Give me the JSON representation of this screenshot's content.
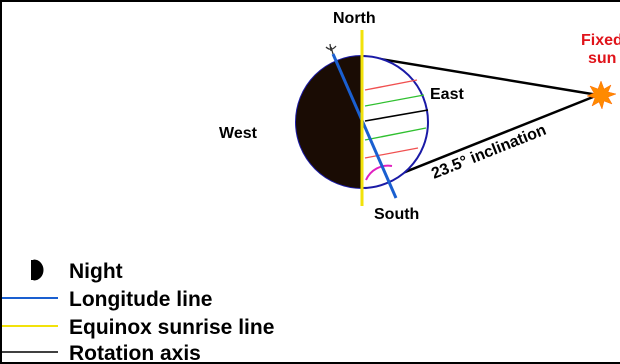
{
  "labels": {
    "north": "North",
    "south": "South",
    "east": "East",
    "west": "West",
    "sun_line1": "Fixed",
    "sun_line2": "sun",
    "inclination": "23.5° inclination"
  },
  "legend": {
    "night": "Night",
    "longitude": "Longitude line",
    "equinox": "Equinox sunrise line",
    "rotation": "Rotation axis"
  },
  "colors": {
    "night": "#1a0c04",
    "earth_outline": "#1a1aa6",
    "longitude": "#1a5fd0",
    "equinox": "#f2e20a",
    "sun": "#ff8a00",
    "sun_label": "#e0141b",
    "band_red": "#f05050",
    "band_green": "#30c030",
    "arc_magenta": "#e020c0"
  },
  "icons": {
    "sun": "sun-starburst-icon",
    "night": "half-moon-night-icon",
    "axis_top": "trident-icon"
  }
}
